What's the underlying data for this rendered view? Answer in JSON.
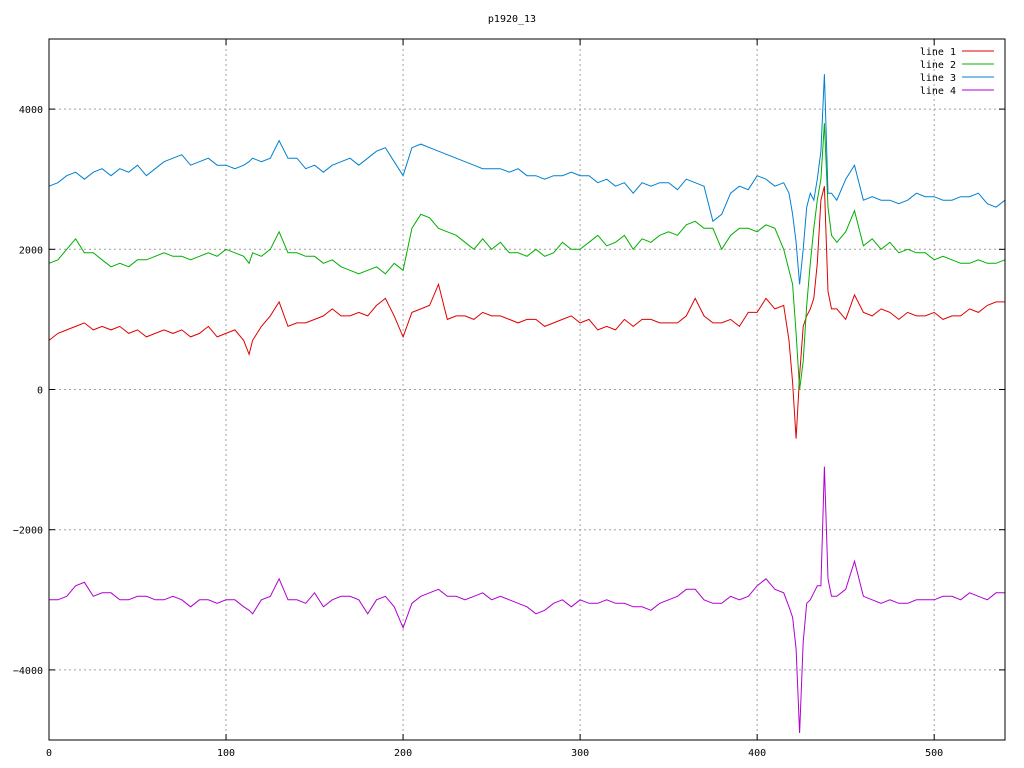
{
  "chart_data": {
    "type": "line",
    "title": "p1920_13",
    "xlabel": "",
    "ylabel": "",
    "xlim": [
      0,
      540
    ],
    "ylim": [
      -5000,
      5000
    ],
    "grid": true,
    "legend_position": "top-right",
    "x_ticks": [
      0,
      100,
      200,
      300,
      400,
      500
    ],
    "y_ticks": [
      -4000,
      -2000,
      0,
      2000,
      4000
    ],
    "x_tick_labels": [
      "0",
      "100",
      "200",
      "300",
      "400",
      "500"
    ],
    "y_tick_labels": [
      "−4000",
      "−2000",
      "0",
      "2000",
      "4000"
    ],
    "x": [
      0,
      5,
      10,
      15,
      20,
      25,
      30,
      35,
      40,
      45,
      50,
      55,
      60,
      65,
      70,
      75,
      80,
      85,
      90,
      95,
      100,
      105,
      110,
      113,
      115,
      120,
      125,
      130,
      135,
      140,
      145,
      150,
      155,
      160,
      165,
      170,
      175,
      180,
      185,
      190,
      195,
      200,
      205,
      210,
      215,
      220,
      225,
      230,
      235,
      240,
      245,
      250,
      255,
      260,
      265,
      270,
      275,
      280,
      285,
      290,
      295,
      300,
      305,
      310,
      315,
      320,
      325,
      330,
      335,
      340,
      345,
      350,
      355,
      360,
      365,
      370,
      375,
      380,
      385,
      390,
      395,
      400,
      405,
      410,
      415,
      418,
      420,
      422,
      424,
      426,
      428,
      430,
      432,
      434,
      436,
      438,
      440,
      442,
      445,
      450,
      455,
      460,
      465,
      470,
      475,
      480,
      485,
      490,
      495,
      500,
      505,
      510,
      515,
      520,
      525,
      530,
      535,
      540
    ],
    "series": [
      {
        "name": "line 1",
        "color": "#e00000",
        "values": [
          700,
          800,
          850,
          900,
          950,
          850,
          900,
          850,
          900,
          800,
          850,
          750,
          800,
          850,
          800,
          850,
          750,
          800,
          900,
          750,
          800,
          850,
          700,
          500,
          700,
          900,
          1050,
          1250,
          900,
          950,
          950,
          1000,
          1050,
          1150,
          1050,
          1050,
          1100,
          1050,
          1200,
          1300,
          1050,
          750,
          1100,
          1150,
          1200,
          1500,
          1000,
          1050,
          1050,
          1000,
          1100,
          1050,
          1050,
          1000,
          950,
          1000,
          1000,
          900,
          950,
          1000,
          1050,
          950,
          1000,
          850,
          900,
          850,
          1000,
          900,
          1000,
          1000,
          950,
          950,
          950,
          1050,
          1300,
          1050,
          950,
          950,
          1000,
          900,
          1100,
          1100,
          1300,
          1150,
          1200,
          700,
          100,
          -700,
          200,
          900,
          1050,
          1150,
          1300,
          1800,
          2700,
          2900,
          1400,
          1150,
          1150,
          1000,
          1350,
          1100,
          1050,
          1150,
          1100,
          1000,
          1100,
          1050,
          1050,
          1100,
          1000,
          1050,
          1050,
          1150,
          1100,
          1200,
          1250,
          1250
        ]
      },
      {
        "name": "line 2",
        "color": "#00b000",
        "values": [
          1800,
          1850,
          2000,
          2150,
          1950,
          1950,
          1850,
          1750,
          1800,
          1750,
          1850,
          1850,
          1900,
          1950,
          1900,
          1900,
          1850,
          1900,
          1950,
          1900,
          2000,
          1950,
          1900,
          1800,
          1950,
          1900,
          2000,
          2250,
          1950,
          1950,
          1900,
          1900,
          1800,
          1850,
          1750,
          1700,
          1650,
          1700,
          1750,
          1650,
          1800,
          1700,
          2300,
          2500,
          2450,
          2300,
          2250,
          2200,
          2100,
          2000,
          2150,
          2000,
          2100,
          1950,
          1950,
          1900,
          2000,
          1900,
          1950,
          2100,
          2000,
          2000,
          2100,
          2200,
          2050,
          2100,
          2200,
          2000,
          2150,
          2100,
          2200,
          2250,
          2200,
          2350,
          2400,
          2300,
          2300,
          2000,
          2200,
          2300,
          2300,
          2250,
          2350,
          2300,
          2000,
          1700,
          1500,
          800,
          0,
          400,
          1200,
          1800,
          2300,
          2700,
          3000,
          3800,
          2600,
          2200,
          2100,
          2250,
          2550,
          2050,
          2150,
          2000,
          2100,
          1950,
          2000,
          1950,
          1950,
          1850,
          1900,
          1850,
          1800,
          1800,
          1850,
          1800,
          1800,
          1850
        ]
      },
      {
        "name": "line 3",
        "color": "#0080d0",
        "values": [
          2900,
          2950,
          3050,
          3100,
          3000,
          3100,
          3150,
          3050,
          3150,
          3100,
          3200,
          3050,
          3150,
          3250,
          3300,
          3350,
          3200,
          3250,
          3300,
          3200,
          3200,
          3150,
          3200,
          3250,
          3300,
          3250,
          3300,
          3550,
          3300,
          3300,
          3150,
          3200,
          3100,
          3200,
          3250,
          3300,
          3200,
          3300,
          3400,
          3450,
          3250,
          3050,
          3450,
          3500,
          3450,
          3400,
          3350,
          3300,
          3250,
          3200,
          3150,
          3150,
          3150,
          3100,
          3150,
          3050,
          3050,
          3000,
          3050,
          3050,
          3100,
          3050,
          3050,
          2950,
          3000,
          2900,
          2950,
          2800,
          2950,
          2900,
          2950,
          2950,
          2850,
          3000,
          2950,
          2900,
          2400,
          2500,
          2800,
          2900,
          2850,
          3050,
          3000,
          2900,
          2950,
          2800,
          2500,
          2100,
          1500,
          2000,
          2600,
          2800,
          2700,
          3000,
          3400,
          4500,
          2800,
          2800,
          2700,
          3000,
          3200,
          2700,
          2750,
          2700,
          2700,
          2650,
          2700,
          2800,
          2750,
          2750,
          2700,
          2700,
          2750,
          2750,
          2800,
          2650,
          2600,
          2700
        ]
      },
      {
        "name": "line 4",
        "color": "#b000d0",
        "values": [
          -3000,
          -3000,
          -2950,
          -2800,
          -2750,
          -2950,
          -2900,
          -2900,
          -3000,
          -3000,
          -2950,
          -2950,
          -3000,
          -3000,
          -2950,
          -3000,
          -3100,
          -3000,
          -3000,
          -3050,
          -3000,
          -3000,
          -3100,
          -3150,
          -3200,
          -3000,
          -2950,
          -2700,
          -3000,
          -3000,
          -3050,
          -2900,
          -3100,
          -3000,
          -2950,
          -2950,
          -3000,
          -3200,
          -3000,
          -2950,
          -3100,
          -3400,
          -3050,
          -2950,
          -2900,
          -2850,
          -2950,
          -2950,
          -3000,
          -2950,
          -2900,
          -3000,
          -2950,
          -3000,
          -3050,
          -3100,
          -3200,
          -3150,
          -3050,
          -3000,
          -3100,
          -3000,
          -3050,
          -3050,
          -3000,
          -3050,
          -3050,
          -3100,
          -3100,
          -3150,
          -3050,
          -3000,
          -2950,
          -2850,
          -2850,
          -3000,
          -3050,
          -3050,
          -2950,
          -3000,
          -2950,
          -2800,
          -2700,
          -2850,
          -2900,
          -3100,
          -3250,
          -3700,
          -4900,
          -3600,
          -3050,
          -3000,
          -2900,
          -2800,
          -2800,
          -1100,
          -2700,
          -2950,
          -2950,
          -2850,
          -2450,
          -2950,
          -3000,
          -3050,
          -3000,
          -3050,
          -3050,
          -3000,
          -3000,
          -3000,
          -2950,
          -2950,
          -3000,
          -2900,
          -2950,
          -3000,
          -2900,
          -2900
        ]
      }
    ]
  }
}
